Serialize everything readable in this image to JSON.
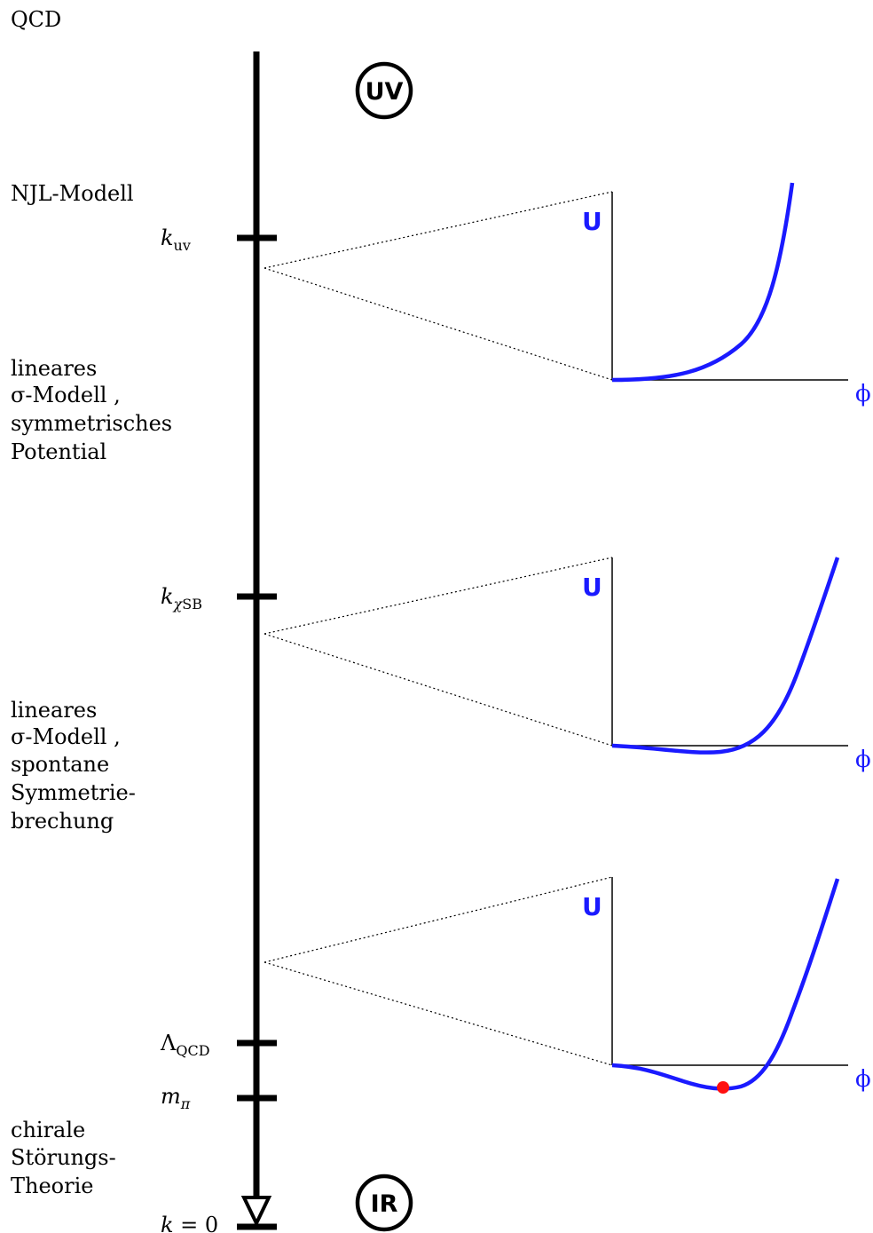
{
  "colors": {
    "line": "#000000",
    "potential_curve": "#1a1aff",
    "minimum_dot": "#ff1010",
    "axis_label": "#1a1aff"
  },
  "top_label": "QCD",
  "markers": {
    "uv": "UV",
    "ir": "IR"
  },
  "regions": {
    "njl": [
      "NJL-Modell"
    ],
    "symmetric": [
      "lineares",
      "σ-Modell ,",
      "symmetrisches",
      "Potential"
    ],
    "broken": [
      "lineares",
      "σ-Modell ,",
      "spontane",
      "Symmetrie-",
      "brechung"
    ],
    "chiral": [
      "chirale",
      "Störungs-",
      "Theorie"
    ]
  },
  "scales": {
    "k_uv": {
      "base": "k",
      "sub": "uv"
    },
    "k_chisb": {
      "base": "k",
      "sub_greek": "χ",
      "sub": "SB"
    },
    "lambda_qcd": {
      "base": "Λ",
      "sub": "QCD"
    },
    "m_pi": {
      "base": "m",
      "sub": "π"
    },
    "k_zero": {
      "base": "k",
      "rest": " = 0"
    }
  },
  "potentials": [
    {
      "name": "symmetric",
      "y_label": "U",
      "x_label": "ϕ",
      "shape": "quartic-single-minimum-at-origin"
    },
    {
      "name": "critical",
      "y_label": "U",
      "x_label": "ϕ",
      "shape": "shallow-minimum"
    },
    {
      "name": "broken",
      "y_label": "U",
      "x_label": "ϕ",
      "shape": "double-well-minimum-marked"
    }
  ]
}
